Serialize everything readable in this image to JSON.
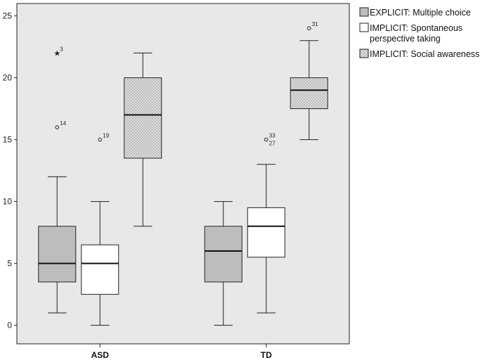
{
  "chart_data": {
    "type": "boxplot",
    "categories": [
      "ASD",
      "TD"
    ],
    "ylim": [
      -1.5,
      26
    ],
    "yticks": [
      0,
      5,
      10,
      15,
      20,
      25
    ],
    "grid": false,
    "legend_position": "right",
    "series": [
      {
        "name": "EXPLICIT: Multiple choice",
        "fill": "#bdbdbd",
        "pattern": "solid",
        "boxes": [
          {
            "category": "ASD",
            "min": 1,
            "q1": 3.5,
            "median": 5,
            "q3": 8,
            "max": 12,
            "outliers": [
              {
                "value": 16,
                "marker": "circle",
                "label": "14"
              },
              {
                "value": 22,
                "marker": "star",
                "label": "3"
              }
            ]
          },
          {
            "category": "TD",
            "min": 0,
            "q1": 3.5,
            "median": 6,
            "q3": 8,
            "max": 10,
            "outliers": []
          }
        ]
      },
      {
        "name": "IMPLICIT: Spontaneous perspective taking",
        "legend_lines": [
          "IMPLICIT: Spontaneous",
          "perspective taking"
        ],
        "fill": "#ffffff",
        "pattern": "solid",
        "boxes": [
          {
            "category": "ASD",
            "min": 0,
            "q1": 2.5,
            "median": 5,
            "q3": 6.5,
            "max": 10,
            "outliers": [
              {
                "value": 15,
                "marker": "circle",
                "label": "19"
              }
            ]
          },
          {
            "category": "TD",
            "min": 1,
            "q1": 5.5,
            "median": 8,
            "q3": 9.5,
            "max": 13,
            "outliers": [
              {
                "value": 15,
                "marker": "circle",
                "label": "33",
                "label2": "27"
              }
            ]
          }
        ]
      },
      {
        "name": "IMPLICIT: Social awareness",
        "fill": "#d9d9d9",
        "pattern": "dots",
        "boxes": [
          {
            "category": "ASD",
            "min": 8,
            "q1": 13.5,
            "median": 17,
            "q3": 20,
            "max": 22,
            "outliers": []
          },
          {
            "category": "TD",
            "min": 15,
            "q1": 17.5,
            "median": 19,
            "q3": 20,
            "max": 23,
            "outliers": [
              {
                "value": 24,
                "marker": "circle",
                "label": "31"
              }
            ]
          }
        ]
      }
    ],
    "colors": {
      "plot_background": "#e8e8e8",
      "axis": "#222222",
      "box_stroke": "#222222"
    }
  }
}
